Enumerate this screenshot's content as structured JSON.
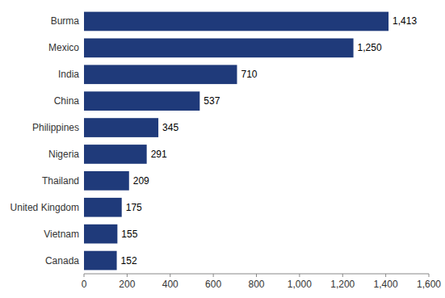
{
  "chart_data": {
    "type": "bar",
    "orientation": "horizontal",
    "categories": [
      "Canada",
      "Vietnam",
      "United Kingdom",
      "Thailand",
      "Nigeria",
      "Philippines",
      "China",
      "India",
      "Mexico",
      "Burma"
    ],
    "values": [
      152,
      155,
      175,
      209,
      291,
      345,
      537,
      710,
      1250,
      1413
    ],
    "value_labels": [
      "152",
      "155",
      "175",
      "209",
      "291",
      "345",
      "537",
      "710",
      "1,250",
      "1,413"
    ],
    "data_labels": true,
    "color": "#1f3a7a",
    "xlim": [
      0,
      1600
    ],
    "xticks": [
      0,
      200,
      400,
      600,
      800,
      {
        "value": 1000,
        "label": "1,000"
      },
      {
        "value": 1200,
        "label": "1,200"
      },
      {
        "value": 1400,
        "label": "1,400"
      },
      {
        "value": 1600,
        "label": "1,600"
      }
    ],
    "grid": false
  }
}
